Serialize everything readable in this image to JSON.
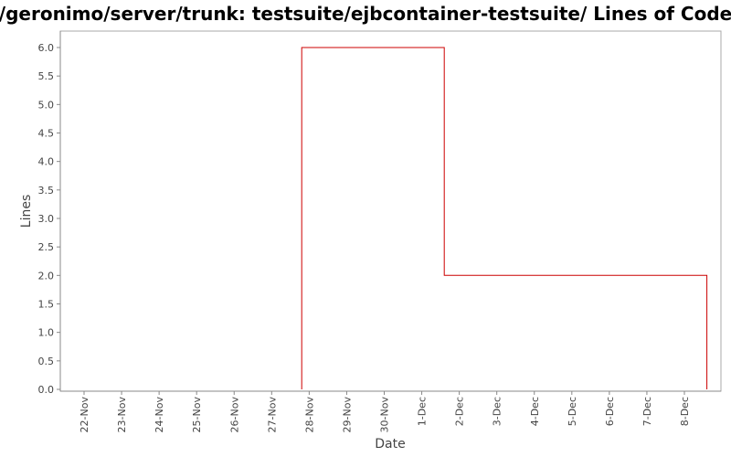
{
  "chart_data": {
    "type": "line",
    "title": "/geronimo/server/trunk: testsuite/ejbcontainer-testsuite/ Lines of Code",
    "xlabel": "Date",
    "ylabel": "Lines",
    "categories": [
      "22-Nov",
      "23-Nov",
      "24-Nov",
      "25-Nov",
      "26-Nov",
      "27-Nov",
      "28-Nov",
      "29-Nov",
      "30-Nov",
      "1-Dec",
      "2-Dec",
      "3-Dec",
      "4-Dec",
      "5-Dec",
      "6-Dec",
      "7-Dec",
      "8-Dec"
    ],
    "y_ticks": [
      "0.0",
      "0.5",
      "1.0",
      "1.5",
      "2.0",
      "2.5",
      "3.0",
      "3.5",
      "4.0",
      "4.5",
      "5.0",
      "5.5",
      "6.0"
    ],
    "ylim": [
      0,
      6.3
    ],
    "xlim": [
      "21.4 Nov",
      "8.6 Dec"
    ],
    "step": true,
    "grid": false,
    "series": [
      {
        "points": [
          {
            "x": "27.8 Nov",
            "y": 0
          },
          {
            "x": "27.8 Nov",
            "y": 6
          },
          {
            "x": "1.6 Dec",
            "y": 6
          },
          {
            "x": "1.6 Dec",
            "y": 2
          },
          {
            "x": "8.6 Dec",
            "y": 2
          },
          {
            "x": "8.6 Dec",
            "y": 0
          }
        ]
      }
    ],
    "colors": {
      "series": "#cc0000",
      "axis": "#888888",
      "text": "#444444",
      "frame": "#aaaaaa"
    }
  }
}
